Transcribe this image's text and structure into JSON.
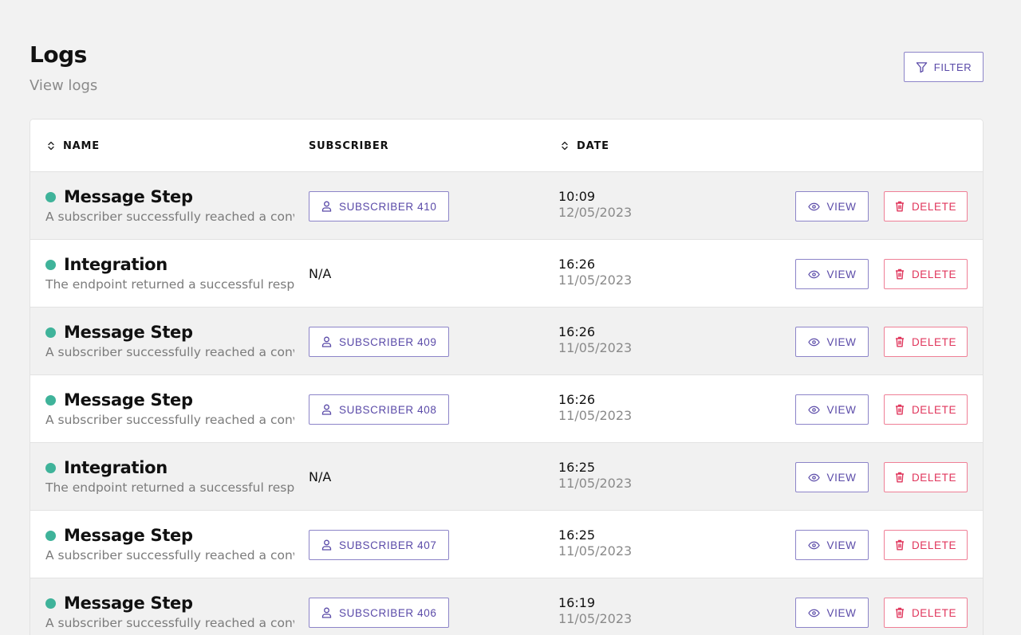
{
  "header": {
    "title": "Logs",
    "subtitle": "View logs",
    "filter_label": "FILTER"
  },
  "columns": {
    "name": "NAME",
    "subscriber": "SUBSCRIBER",
    "date": "DATE"
  },
  "actions": {
    "view_label": "VIEW",
    "delete_label": "DELETE"
  },
  "colors": {
    "accent": "#5a4aa8",
    "danger": "#e0365c",
    "status_success": "#3fb39a"
  },
  "rows": [
    {
      "title": "Message Step",
      "description": "A subscriber successfully reached a conversion step",
      "subscriber": "SUBSCRIBER 410",
      "time": "10:09",
      "date": "12/05/2023"
    },
    {
      "title": "Integration",
      "description": "The endpoint returned a successful response",
      "subscriber": "N/A",
      "time": "16:26",
      "date": "11/05/2023"
    },
    {
      "title": "Message Step",
      "description": "A subscriber successfully reached a conversion step",
      "subscriber": "SUBSCRIBER 409",
      "time": "16:26",
      "date": "11/05/2023"
    },
    {
      "title": "Message Step",
      "description": "A subscriber successfully reached a conversion step",
      "subscriber": "SUBSCRIBER 408",
      "time": "16:26",
      "date": "11/05/2023"
    },
    {
      "title": "Integration",
      "description": "The endpoint returned a successful response",
      "subscriber": "N/A",
      "time": "16:25",
      "date": "11/05/2023"
    },
    {
      "title": "Message Step",
      "description": "A subscriber successfully reached a conversion step",
      "subscriber": "SUBSCRIBER 407",
      "time": "16:25",
      "date": "11/05/2023"
    },
    {
      "title": "Message Step",
      "description": "A subscriber successfully reached a conversion step",
      "subscriber": "SUBSCRIBER 406",
      "time": "16:19",
      "date": "11/05/2023"
    }
  ]
}
